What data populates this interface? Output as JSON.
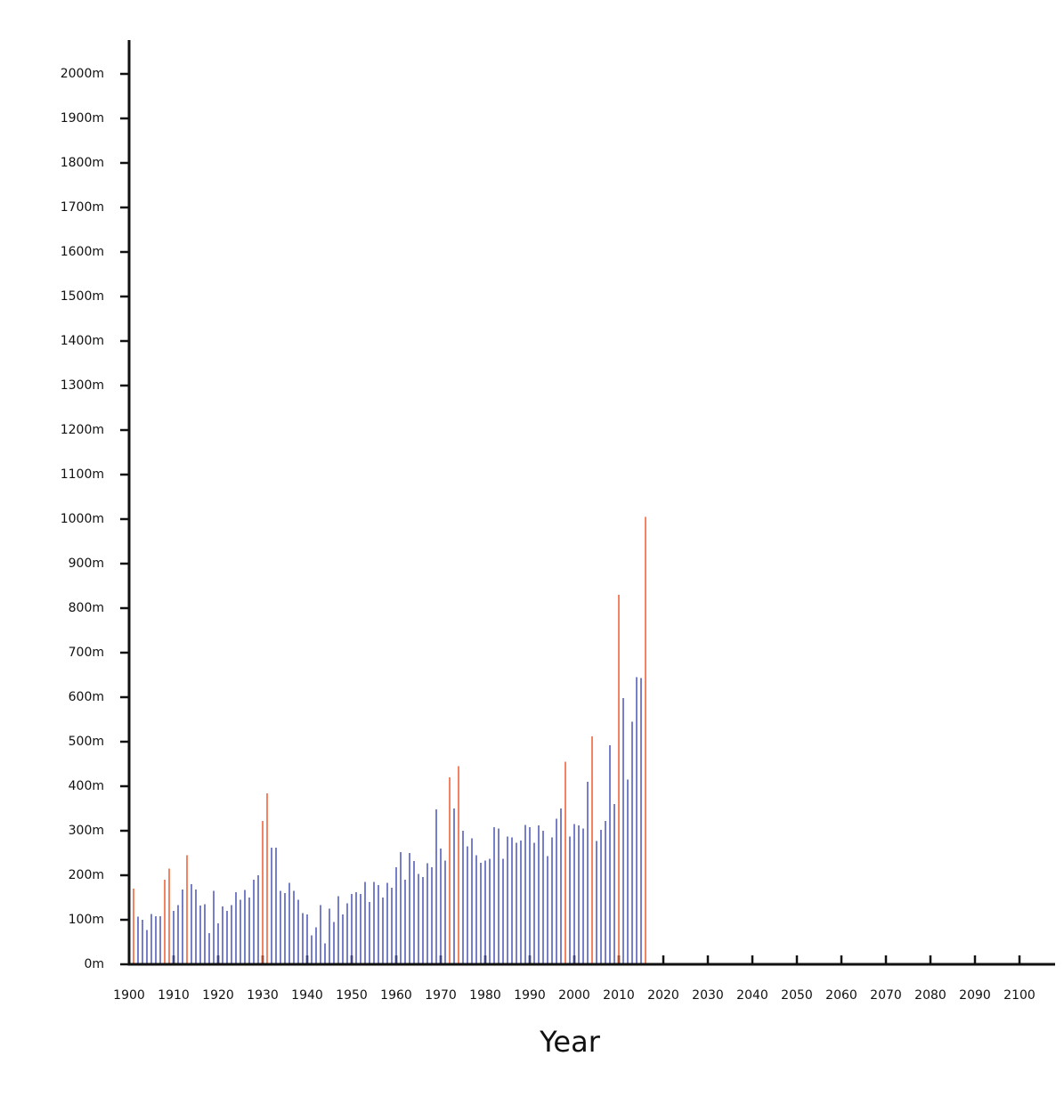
{
  "chart_data": {
    "type": "bar",
    "xlabel": "Year",
    "x": [
      1901,
      1902,
      1903,
      1904,
      1905,
      1906,
      1907,
      1908,
      1909,
      1910,
      1911,
      1912,
      1913,
      1914,
      1915,
      1916,
      1917,
      1918,
      1919,
      1920,
      1921,
      1922,
      1923,
      1924,
      1925,
      1926,
      1927,
      1928,
      1929,
      1930,
      1931,
      1932,
      1933,
      1934,
      1935,
      1936,
      1937,
      1938,
      1939,
      1940,
      1941,
      1942,
      1943,
      1944,
      1945,
      1946,
      1947,
      1948,
      1949,
      1950,
      1951,
      1952,
      1953,
      1954,
      1955,
      1956,
      1957,
      1958,
      1959,
      1960,
      1961,
      1962,
      1963,
      1964,
      1965,
      1966,
      1967,
      1968,
      1969,
      1970,
      1971,
      1972,
      1973,
      1974,
      1975,
      1976,
      1977,
      1978,
      1979,
      1980,
      1981,
      1982,
      1983,
      1984,
      1985,
      1986,
      1987,
      1988,
      1989,
      1990,
      1991,
      1992,
      1993,
      1994,
      1995,
      1996,
      1997,
      1998,
      1999,
      2000,
      2001,
      2002,
      2003,
      2004,
      2005,
      2006,
      2007,
      2008,
      2009,
      2010,
      2011,
      2012,
      2013,
      2014,
      2015,
      2016
    ],
    "values": [
      170,
      107,
      100,
      77,
      113,
      108,
      108,
      190,
      215,
      120,
      133,
      168,
      245,
      180,
      168,
      132,
      135,
      70,
      165,
      92,
      130,
      120,
      133,
      162,
      145,
      167,
      150,
      190,
      200,
      322,
      384,
      262,
      262,
      165,
      160,
      183,
      165,
      145,
      115,
      112,
      65,
      83,
      133,
      47,
      125,
      95,
      153,
      112,
      137,
      158,
      162,
      158,
      185,
      140,
      185,
      178,
      150,
      183,
      172,
      218,
      252,
      190,
      250,
      232,
      203,
      196,
      227,
      218,
      348,
      260,
      233,
      420,
      350,
      445,
      300,
      265,
      283,
      245,
      228,
      233,
      237,
      308,
      305,
      237,
      287,
      285,
      273,
      278,
      313,
      308,
      273,
      312,
      300,
      243,
      285,
      327,
      350,
      455,
      287,
      315,
      312,
      305,
      410,
      512,
      277,
      302,
      322,
      492,
      360,
      830,
      598,
      415,
      545,
      645,
      643,
      1005
    ],
    "colors": [
      "#f05a30",
      "#4a55b8",
      "#4a55b8",
      "#4a55b8",
      "#4a55b8",
      "#4a55b8",
      "#4a55b8",
      "#f05a30",
      "#f05a30",
      "#4a55b8",
      "#4a55b8",
      "#4a55b8",
      "#f05a30",
      "#4a55b8",
      "#4a55b8",
      "#4a55b8",
      "#4a55b8",
      "#4a55b8",
      "#4a55b8",
      "#4a55b8",
      "#4a55b8",
      "#4a55b8",
      "#4a55b8",
      "#4a55b8",
      "#4a55b8",
      "#4a55b8",
      "#4a55b8",
      "#4a55b8",
      "#4a55b8",
      "#f05a30",
      "#f05a30",
      "#4a55b8",
      "#4a55b8",
      "#4a55b8",
      "#4a55b8",
      "#4a55b8",
      "#4a55b8",
      "#4a55b8",
      "#4a55b8",
      "#4a55b8",
      "#4a55b8",
      "#4a55b8",
      "#4a55b8",
      "#4a55b8",
      "#4a55b8",
      "#4a55b8",
      "#4a55b8",
      "#4a55b8",
      "#4a55b8",
      "#4a55b8",
      "#4a55b8",
      "#4a55b8",
      "#4a55b8",
      "#4a55b8",
      "#4a55b8",
      "#4a55b8",
      "#4a55b8",
      "#4a55b8",
      "#4a55b8",
      "#4a55b8",
      "#4a55b8",
      "#4a55b8",
      "#4a55b8",
      "#4a55b8",
      "#4a55b8",
      "#4a55b8",
      "#4a55b8",
      "#4a55b8",
      "#4a55b8",
      "#4a55b8",
      "#4a55b8",
      "#f05a30",
      "#4a55b8",
      "#f05a30",
      "#4a55b8",
      "#4a55b8",
      "#4a55b8",
      "#4a55b8",
      "#4a55b8",
      "#4a55b8",
      "#4a55b8",
      "#4a55b8",
      "#4a55b8",
      "#4a55b8",
      "#4a55b8",
      "#4a55b8",
      "#4a55b8",
      "#4a55b8",
      "#4a55b8",
      "#4a55b8",
      "#4a55b8",
      "#4a55b8",
      "#4a55b8",
      "#4a55b8",
      "#4a55b8",
      "#4a55b8",
      "#4a55b8",
      "#f05a30",
      "#4a55b8",
      "#4a55b8",
      "#4a55b8",
      "#4a55b8",
      "#4a55b8",
      "#f05a30",
      "#4a55b8",
      "#4a55b8",
      "#4a55b8",
      "#4a55b8",
      "#4a55b8",
      "#f05a30",
      "#4a55b8",
      "#4a55b8",
      "#4a55b8",
      "#4a55b8",
      "#4a55b8",
      "#f05a30"
    ],
    "xlim": [
      1900,
      2108
    ],
    "ylim": [
      0,
      2076
    ],
    "xticks": [
      1900,
      1910,
      1920,
      1930,
      1940,
      1950,
      1960,
      1970,
      1980,
      1990,
      2000,
      2010,
      2020,
      2030,
      2040,
      2050,
      2060,
      2070,
      2080,
      2090,
      2100
    ],
    "yticks": [
      {
        "value": 0,
        "label": "0m"
      },
      {
        "value": 100,
        "label": "100m"
      },
      {
        "value": 200,
        "label": "200m"
      },
      {
        "value": 300,
        "label": "300m"
      },
      {
        "value": 400,
        "label": "400m"
      },
      {
        "value": 500,
        "label": "500m"
      },
      {
        "value": 600,
        "label": "600m"
      },
      {
        "value": 700,
        "label": "700m"
      },
      {
        "value": 800,
        "label": "800m"
      },
      {
        "value": 900,
        "label": "900m"
      },
      {
        "value": 1000,
        "label": "1000m"
      },
      {
        "value": 1100,
        "label": "1100m"
      },
      {
        "value": 1200,
        "label": "1200m"
      },
      {
        "value": 1300,
        "label": "1300m"
      },
      {
        "value": 1400,
        "label": "1400m"
      },
      {
        "value": 1500,
        "label": "1500m"
      },
      {
        "value": 1600,
        "label": "1600m"
      },
      {
        "value": 1700,
        "label": "1700m"
      },
      {
        "value": 1800,
        "label": "1800m"
      },
      {
        "value": 1900,
        "label": "1900m"
      },
      {
        "value": 2000,
        "label": "2000m"
      }
    ]
  }
}
